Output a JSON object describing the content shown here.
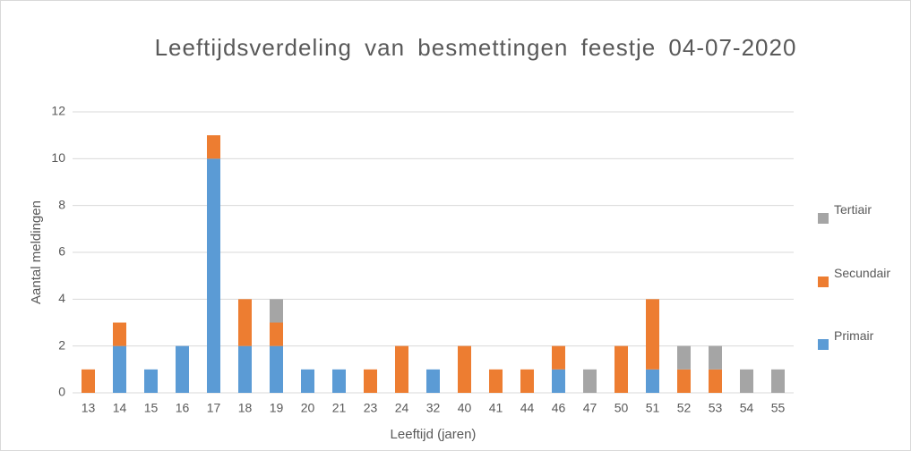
{
  "chart_data": {
    "type": "stacked_bar",
    "title": "Leeftijdsverdeling van besmettingen feestje 04-07-2020",
    "x_label": "Leeftijd (jaren)",
    "y_label": "Aantal meldingen",
    "categories": [
      "13",
      "14",
      "15",
      "16",
      "17",
      "18",
      "19",
      "20",
      "21",
      "23",
      "24",
      "32",
      "40",
      "41",
      "44",
      "46",
      "47",
      "50",
      "51",
      "52",
      "53",
      "54",
      "55"
    ],
    "series": [
      {
        "name": "Primair",
        "color": "#5b9bd5",
        "values": [
          0,
          2,
          1,
          2,
          10,
          2,
          2,
          1,
          1,
          0,
          0,
          1,
          0,
          0,
          0,
          1,
          0,
          0,
          1,
          0,
          0,
          0,
          0
        ]
      },
      {
        "name": "Secundair",
        "color": "#ed7d31",
        "values": [
          1,
          1,
          0,
          0,
          1,
          2,
          1,
          0,
          0,
          1,
          2,
          0,
          2,
          1,
          1,
          1,
          0,
          2,
          3,
          1,
          1,
          0,
          0
        ]
      },
      {
        "name": "Tertiair",
        "color": "#a5a5a5",
        "values": [
          0,
          0,
          0,
          0,
          0,
          0,
          1,
          0,
          0,
          0,
          0,
          0,
          0,
          0,
          0,
          0,
          1,
          0,
          0,
          1,
          1,
          1,
          1
        ]
      }
    ],
    "ylim": [
      0,
      12
    ],
    "yticks": [
      0,
      2,
      4,
      6,
      8,
      10,
      12
    ],
    "grid": true,
    "legend": "right"
  }
}
